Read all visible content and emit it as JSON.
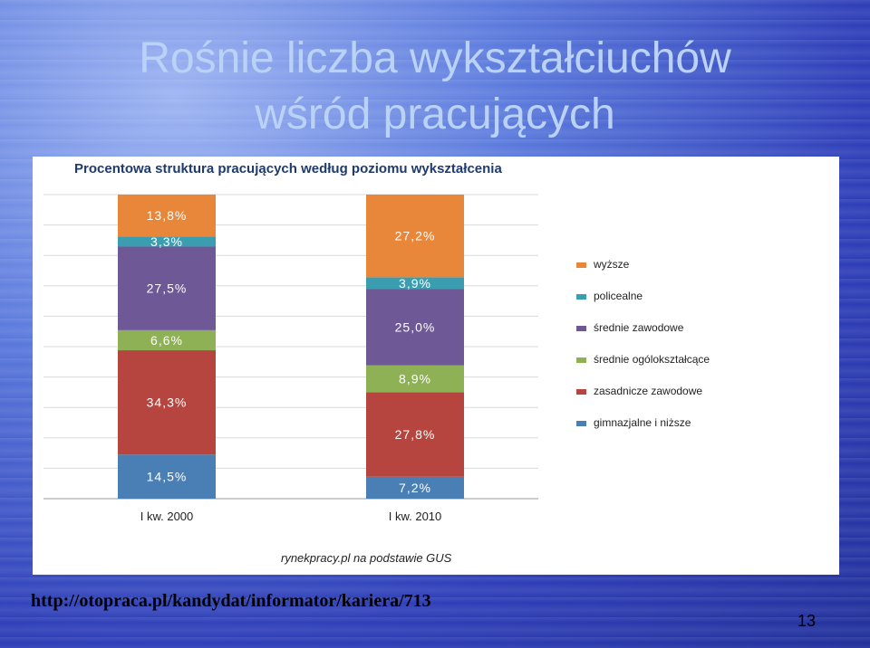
{
  "slide": {
    "title_line1": "Rośnie liczba wykształciuchów",
    "title_line2": "wśród pracujących",
    "link": "http://otopraca.pl/kandydat/informator/kariera/713",
    "page_number": "13"
  },
  "chart_data": {
    "type": "bar",
    "stacked": true,
    "title": "Procentowa struktura pracujących według poziomu wykształcenia",
    "categories": [
      "I kw. 2000",
      "I kw. 2010"
    ],
    "series": [
      {
        "name": "gimnazjalne i niższe",
        "color": "#4A7FB5",
        "values": [
          14.5,
          7.2
        ],
        "labels": [
          "14,5%",
          "7,2%"
        ]
      },
      {
        "name": "zasadnicze zawodowe",
        "color": "#B7453F",
        "values": [
          34.3,
          27.8
        ],
        "labels": [
          "34,3%",
          "27,8%"
        ]
      },
      {
        "name": "średnie ogólokształcące",
        "color": "#8FB156",
        "values": [
          6.6,
          8.9
        ],
        "labels": [
          "6,6%",
          "8,9%"
        ]
      },
      {
        "name": "średnie zawodowe",
        "color": "#6E5895",
        "values": [
          27.5,
          25.0
        ],
        "labels": [
          "27,5%",
          "25,0%"
        ]
      },
      {
        "name": "policealne",
        "color": "#3B9EB0",
        "values": [
          3.3,
          3.9
        ],
        "labels": [
          "3,3%",
          "3,9%"
        ]
      },
      {
        "name": "wyższe",
        "color": "#E8873A",
        "values": [
          13.8,
          27.2
        ],
        "labels": [
          "13,8%",
          "27,2%"
        ]
      }
    ],
    "legend_position": "right",
    "source": "rynekpracy.pl na podstawie GUS",
    "ylim": [
      0,
      100
    ],
    "grid": true
  }
}
